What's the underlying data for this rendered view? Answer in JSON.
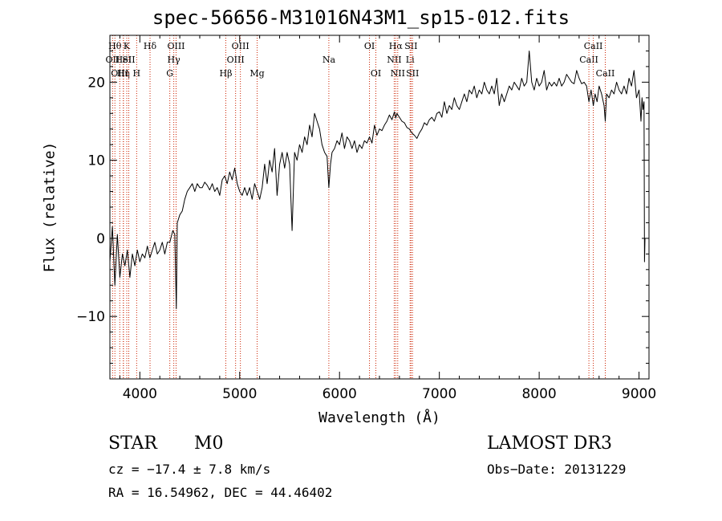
{
  "chart_data": {
    "type": "line",
    "title": "spec-56656-M31016N43M1_sp15-012.fits",
    "xlabel": "Wavelength (Å)",
    "ylabel": "Flux (relative)",
    "xlim": [
      3700,
      9100
    ],
    "ylim": [
      -18,
      26
    ],
    "xticks": [
      4000,
      5000,
      6000,
      7000,
      8000,
      9000
    ],
    "yticks": [
      -10,
      0,
      10,
      20
    ],
    "xtick_labels": [
      "4000",
      "5000",
      "6000",
      "7000",
      "8000",
      "9000"
    ],
    "ytick_labels": [
      "−10",
      "0",
      "10",
      "20"
    ],
    "series": [
      {
        "name": "flux",
        "points": [
          [
            3700,
            -3
          ],
          [
            3725,
            1.5
          ],
          [
            3750,
            -6
          ],
          [
            3775,
            0.5
          ],
          [
            3800,
            -5
          ],
          [
            3825,
            -2
          ],
          [
            3850,
            -3.5
          ],
          [
            3875,
            -1.5
          ],
          [
            3900,
            -5
          ],
          [
            3925,
            -2
          ],
          [
            3950,
            -3.5
          ],
          [
            3975,
            -1.5
          ],
          [
            4000,
            -3
          ],
          [
            4025,
            -2
          ],
          [
            4050,
            -2.5
          ],
          [
            4075,
            -1
          ],
          [
            4100,
            -2.5
          ],
          [
            4125,
            -1.5
          ],
          [
            4150,
            -0.5
          ],
          [
            4175,
            -2
          ],
          [
            4200,
            -1.5
          ],
          [
            4225,
            -0.5
          ],
          [
            4250,
            -2
          ],
          [
            4275,
            -0.5
          ],
          [
            4300,
            -0.5
          ],
          [
            4330,
            1
          ],
          [
            4350,
            0.5
          ],
          [
            4365,
            -9
          ],
          [
            4375,
            2
          ],
          [
            4400,
            3
          ],
          [
            4425,
            3.5
          ],
          [
            4450,
            5
          ],
          [
            4475,
            6
          ],
          [
            4500,
            6.5
          ],
          [
            4525,
            7
          ],
          [
            4550,
            6
          ],
          [
            4575,
            7
          ],
          [
            4600,
            6.5
          ],
          [
            4625,
            6.5
          ],
          [
            4650,
            7.2
          ],
          [
            4675,
            6.8
          ],
          [
            4700,
            6.2
          ],
          [
            4725,
            7
          ],
          [
            4750,
            6
          ],
          [
            4775,
            6.5
          ],
          [
            4800,
            5.5
          ],
          [
            4825,
            7.5
          ],
          [
            4850,
            8
          ],
          [
            4875,
            7
          ],
          [
            4900,
            8.5
          ],
          [
            4925,
            7.5
          ],
          [
            4950,
            9
          ],
          [
            4975,
            7
          ],
          [
            5000,
            6
          ],
          [
            5025,
            5.5
          ],
          [
            5050,
            6.5
          ],
          [
            5075,
            5.5
          ],
          [
            5100,
            6.5
          ],
          [
            5125,
            5
          ],
          [
            5150,
            7
          ],
          [
            5175,
            6
          ],
          [
            5200,
            5
          ],
          [
            5225,
            6.5
          ],
          [
            5250,
            9.5
          ],
          [
            5275,
            7
          ],
          [
            5300,
            10
          ],
          [
            5325,
            8.5
          ],
          [
            5350,
            11.5
          ],
          [
            5375,
            5.5
          ],
          [
            5400,
            9.5
          ],
          [
            5425,
            11
          ],
          [
            5450,
            9
          ],
          [
            5475,
            11
          ],
          [
            5500,
            9.5
          ],
          [
            5525,
            1
          ],
          [
            5550,
            11
          ],
          [
            5575,
            10
          ],
          [
            5600,
            12
          ],
          [
            5625,
            11
          ],
          [
            5650,
            13
          ],
          [
            5675,
            12
          ],
          [
            5700,
            14.5
          ],
          [
            5725,
            13
          ],
          [
            5750,
            16
          ],
          [
            5775,
            15
          ],
          [
            5800,
            14
          ],
          [
            5825,
            12
          ],
          [
            5850,
            11
          ],
          [
            5875,
            10.5
          ],
          [
            5893,
            6.5
          ],
          [
            5910,
            9.5
          ],
          [
            5925,
            11
          ],
          [
            5950,
            11.5
          ],
          [
            5975,
            12.5
          ],
          [
            6000,
            12
          ],
          [
            6025,
            13.5
          ],
          [
            6050,
            11.5
          ],
          [
            6075,
            13
          ],
          [
            6100,
            12.5
          ],
          [
            6125,
            11.5
          ],
          [
            6150,
            12.5
          ],
          [
            6175,
            11
          ],
          [
            6200,
            12
          ],
          [
            6225,
            11.5
          ],
          [
            6250,
            12.5
          ],
          [
            6275,
            12.2
          ],
          [
            6300,
            13
          ],
          [
            6325,
            12.2
          ],
          [
            6350,
            14.5
          ],
          [
            6375,
            13.2
          ],
          [
            6400,
            14
          ],
          [
            6425,
            13.8
          ],
          [
            6450,
            14.5
          ],
          [
            6475,
            15
          ],
          [
            6500,
            15.8
          ],
          [
            6525,
            15.2
          ],
          [
            6550,
            16.2
          ],
          [
            6563,
            15.4
          ],
          [
            6575,
            16
          ],
          [
            6600,
            15.5
          ],
          [
            6625,
            15
          ],
          [
            6650,
            14.8
          ],
          [
            6675,
            14.2
          ],
          [
            6700,
            14
          ],
          [
            6725,
            13.5
          ],
          [
            6750,
            13.2
          ],
          [
            6775,
            12.8
          ],
          [
            6800,
            13.5
          ],
          [
            6825,
            14
          ],
          [
            6850,
            14.8
          ],
          [
            6875,
            14.5
          ],
          [
            6900,
            15.2
          ],
          [
            6925,
            15.5
          ],
          [
            6950,
            15
          ],
          [
            6975,
            16
          ],
          [
            7000,
            16.2
          ],
          [
            7025,
            15.5
          ],
          [
            7050,
            17.5
          ],
          [
            7075,
            16
          ],
          [
            7100,
            17
          ],
          [
            7125,
            16.5
          ],
          [
            7150,
            18
          ],
          [
            7175,
            17
          ],
          [
            7200,
            16.5
          ],
          [
            7225,
            17.5
          ],
          [
            7250,
            18.5
          ],
          [
            7275,
            17.5
          ],
          [
            7300,
            19
          ],
          [
            7325,
            18.5
          ],
          [
            7350,
            19.5
          ],
          [
            7375,
            18
          ],
          [
            7400,
            19
          ],
          [
            7425,
            18.5
          ],
          [
            7450,
            20
          ],
          [
            7475,
            19
          ],
          [
            7500,
            18.5
          ],
          [
            7525,
            19.5
          ],
          [
            7550,
            18.5
          ],
          [
            7575,
            20.5
          ],
          [
            7600,
            17
          ],
          [
            7625,
            18.5
          ],
          [
            7650,
            17.5
          ],
          [
            7675,
            18.5
          ],
          [
            7700,
            19.5
          ],
          [
            7725,
            19
          ],
          [
            7750,
            20
          ],
          [
            7775,
            19.5
          ],
          [
            7800,
            19
          ],
          [
            7825,
            20.5
          ],
          [
            7850,
            19.5
          ],
          [
            7875,
            20
          ],
          [
            7900,
            24
          ],
          [
            7925,
            20
          ],
          [
            7950,
            19
          ],
          [
            7975,
            20.5
          ],
          [
            8000,
            19.5
          ],
          [
            8025,
            20
          ],
          [
            8050,
            21.5
          ],
          [
            8075,
            19
          ],
          [
            8100,
            20
          ],
          [
            8125,
            19.5
          ],
          [
            8150,
            20
          ],
          [
            8175,
            19.5
          ],
          [
            8200,
            20.5
          ],
          [
            8225,
            19.5
          ],
          [
            8250,
            20
          ],
          [
            8275,
            21
          ],
          [
            8300,
            20.5
          ],
          [
            8325,
            20
          ],
          [
            8350,
            19.8
          ],
          [
            8375,
            21.5
          ],
          [
            8400,
            20.5
          ],
          [
            8425,
            19.8
          ],
          [
            8450,
            20
          ],
          [
            8475,
            19.5
          ],
          [
            8498,
            17.5
          ],
          [
            8520,
            19
          ],
          [
            8542,
            17
          ],
          [
            8560,
            18.5
          ],
          [
            8580,
            17.5
          ],
          [
            8600,
            19.5
          ],
          [
            8625,
            18.5
          ],
          [
            8650,
            17
          ],
          [
            8662,
            15
          ],
          [
            8675,
            18.5
          ],
          [
            8700,
            18
          ],
          [
            8725,
            19
          ],
          [
            8750,
            18.5
          ],
          [
            8775,
            20
          ],
          [
            8800,
            19
          ],
          [
            8825,
            18.5
          ],
          [
            8850,
            19.5
          ],
          [
            8875,
            18.5
          ],
          [
            8900,
            20.5
          ],
          [
            8925,
            19.5
          ],
          [
            8950,
            21.5
          ],
          [
            8975,
            18
          ],
          [
            9000,
            19
          ],
          [
            9010,
            17
          ],
          [
            9020,
            15
          ],
          [
            9030,
            18
          ],
          [
            9040,
            16.5
          ],
          [
            9050,
            17.5
          ],
          [
            9055,
            -3
          ],
          [
            9060,
            0
          ]
        ]
      }
    ],
    "line_markers": [
      {
        "wl": 3727,
        "row": 1,
        "label": "OII"
      },
      {
        "wl": 3750,
        "row": 0,
        "label": "Hθ"
      },
      {
        "wl": 3799,
        "row": 2,
        "label": "OIII"
      },
      {
        "wl": 3835,
        "row": 1,
        "label": "HeI"
      },
      {
        "wl": 3835,
        "row": 2,
        "label": "Hη"
      },
      {
        "wl": 3869,
        "row": 0,
        "label": "K"
      },
      {
        "wl": 3889,
        "row": 1,
        "label": "SII"
      },
      {
        "wl": 3968,
        "row": 2,
        "label": "H"
      },
      {
        "wl": 4102,
        "row": 0,
        "label": "Hδ"
      },
      {
        "wl": 4300,
        "row": 2,
        "label": "G"
      },
      {
        "wl": 4340,
        "row": 1,
        "label": "Hγ"
      },
      {
        "wl": 4363,
        "row": 0,
        "label": "OIII"
      },
      {
        "wl": 4861,
        "row": 2,
        "label": "Hβ"
      },
      {
        "wl": 4959,
        "row": 1,
        "label": "OIII"
      },
      {
        "wl": 5007,
        "row": 0,
        "label": "OIII"
      },
      {
        "wl": 5175,
        "row": 2,
        "label": "Mg"
      },
      {
        "wl": 5893,
        "row": 1,
        "label": "Na"
      },
      {
        "wl": 6300,
        "row": 0,
        "label": "OI"
      },
      {
        "wl": 6364,
        "row": 2,
        "label": "OI"
      },
      {
        "wl": 6548,
        "row": 1,
        "label": "NII"
      },
      {
        "wl": 6563,
        "row": 0,
        "label": "Hα"
      },
      {
        "wl": 6583,
        "row": 2,
        "label": "NII"
      },
      {
        "wl": 6707,
        "row": 1,
        "label": "Li"
      },
      {
        "wl": 6716,
        "row": 0,
        "label": "SII"
      },
      {
        "wl": 6731,
        "row": 2,
        "label": "SII"
      },
      {
        "wl": 8498,
        "row": 1,
        "label": "CaII"
      },
      {
        "wl": 8542,
        "row": 0,
        "label": "CaII"
      },
      {
        "wl": 8662,
        "row": 2,
        "label": "CaII"
      }
    ]
  },
  "info": {
    "object_class": "STAR",
    "subclass": "M0",
    "survey": "LAMOST DR3",
    "redshift": "cz = −17.4 ± 7.8 km/s",
    "obs_date": "Obs−Date: 20131229",
    "coords": "RA =  16.54962, DEC =  44.46402"
  },
  "colors": {
    "spectrum": "#000000",
    "marker_line": "#cc2200",
    "frame": "#000000",
    "background": "#ffffff"
  }
}
